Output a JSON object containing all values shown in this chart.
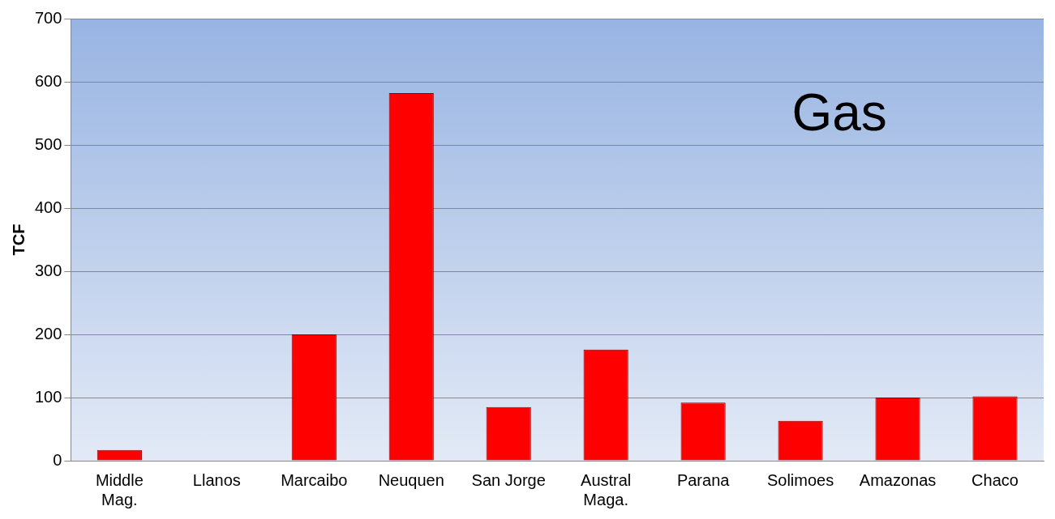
{
  "chart_data": {
    "type": "bar",
    "ylabel": "TCF",
    "annotations": [
      "Gas"
    ],
    "categories": [
      "Middle Mag.",
      "Llanos",
      "Marcaibo",
      "Neuquen",
      "San Jorge",
      "Austral Maga.",
      "Parana",
      "Solimoes",
      "Amazonas",
      "Chaco"
    ],
    "values": [
      17,
      0,
      200,
      582,
      85,
      176,
      92,
      63,
      100,
      102
    ],
    "color": "#ff0000",
    "ylim": [
      0,
      700
    ],
    "yticks": [
      0,
      100,
      200,
      300,
      400,
      500,
      600,
      700
    ],
    "grid": "y",
    "legend": false
  }
}
